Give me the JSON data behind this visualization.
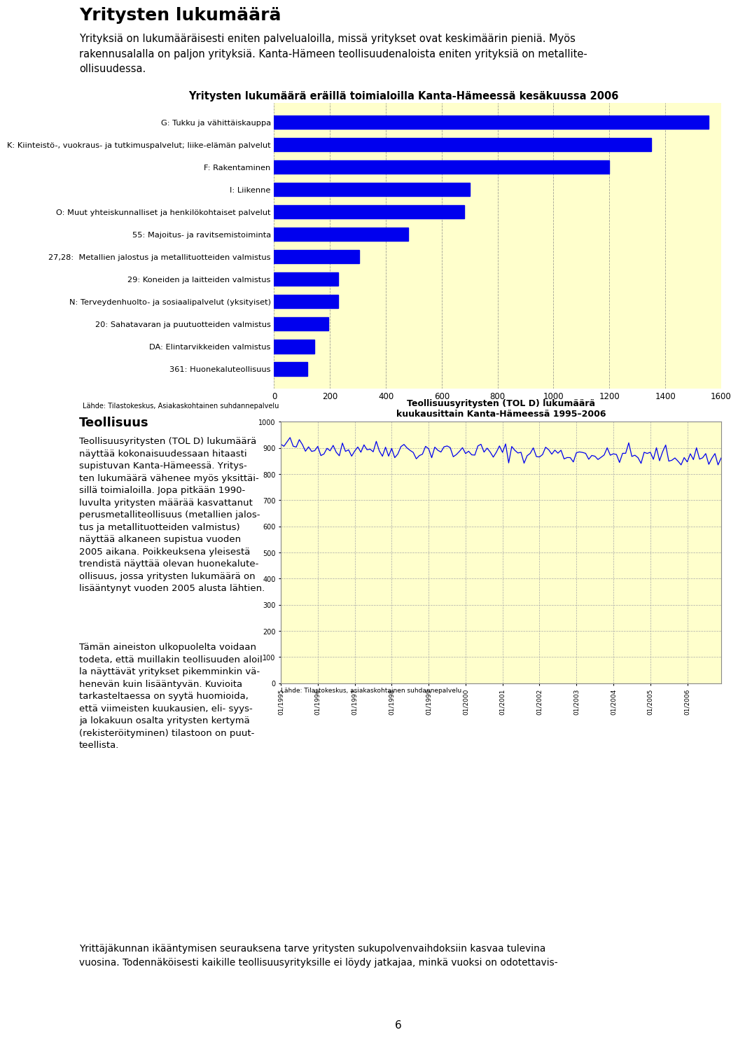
{
  "chart_title": "Yritysten lukumäärä eräillä toimialoilla Kanta-Hämeessä kesäkuussa 2006",
  "page_title": "Yritysten lukumäärä",
  "body_text": "Yrityksiä on lukumääräisesti eniten palvelualoilla, missä yritykset ovat keskimäärin pieniä. Myös\nrakennusalalla on paljon yrityksiä. Kanta-Hämeen teollisuudenaloista eniten yrityksiä on metallite-\nollisuudessa.",
  "categories": [
    "G: Tukku ja vähittäiskauppa",
    "K: Kiinteistö-, vuokraus- ja tutkimuspalvelut; liike-elämän palvelut",
    "F: Rakentaminen",
    "I: Liikenne",
    "O: Muut yhteiskunnalliset ja henkilökohtaiset palvelut",
    "55: Majoitus- ja ravitsemistoiminta",
    "27,28:  Metallien jalostus ja metallituotteiden valmistus",
    "29: Koneiden ja laitteiden valmistus",
    "N: Terveydenhuolto- ja sosiaalipalvelut (yksityiset)",
    "20: Sahatavaran ja puutuotteiden valmistus",
    "DA: Elintarvikkeiden valmistus",
    "361: Huonekaluteollisuus"
  ],
  "values": [
    1555,
    1350,
    1200,
    700,
    680,
    480,
    305,
    230,
    230,
    195,
    145,
    120
  ],
  "bar_color": "#0000ee",
  "chart_bg": "#ffffcc",
  "page_bg": "#ffffff",
  "xlim": [
    0,
    1600
  ],
  "xticks": [
    0,
    200,
    400,
    600,
    800,
    1000,
    1200,
    1400,
    1600
  ],
  "chart_source": "Lähde: Tilastokeskus, Asiakaskohtainen suhdannepalvelu",
  "teoll_heading": "Teollisuus",
  "teoll_text1": "Teollisuusyritysten (TOL D) lukumäärä\nnäyttää kokonaisuudessaan hitaasti\nsupistuvan Kanta-Hämeessä. Yritys-\nten lukumäärä vähenee myös yksittäi-\nsillä toimialoilla. Jopa pitkään 1990-\nluvulta yritysten määrää kasvattanut\nperusmetalliteollisuus (metallien jalos-\ntus ja metallituotteiden valmistus)\nnäyttää alkaneen supistua vuoden\n2005 aikana. Poikkeuksena yleisestä\ntrendistä näyttää olevan huonekalute-\nollisuus, jossa yritysten lukumäärä on\nlisääntynyt vuoden 2005 alusta lähtien.",
  "teoll_text2": "Tämän aineiston ulkopuolelta voidaan\ntodeta, että muillakin teollisuuden aloil-\nla näyttävät yritykset pikemminkin vä-\nhenevän kuin lisääntyvän. Kuvioita\ntarkasteltaessa on syytä huomioida,\nettä viimeisten kuukausien, eli- syys-\nja lokakuun osalta yritysten kertymä\n(rekisteröityminen) tilastoon on puut-\nteellista.",
  "line_title": "Teollisuusyritysten (TOL D) lukumäärä\nkuukausittain Kanta-Hämeessä 1995–2006",
  "line_source": "Lähde: Tilastokeskus, asiakaskohtainen suhdannepalvelu",
  "bottom_text": "Yrittäjäkunnan ikääntymisen seurauksena tarve yritysten sukupolvenvaihdoksiin kasvaa tulevina\nvuosina. Todennäköisesti kaikille teollisuusyrityksille ei löydy jatkajaa, minkä vuoksi on odotettavis-",
  "page_number": "6"
}
